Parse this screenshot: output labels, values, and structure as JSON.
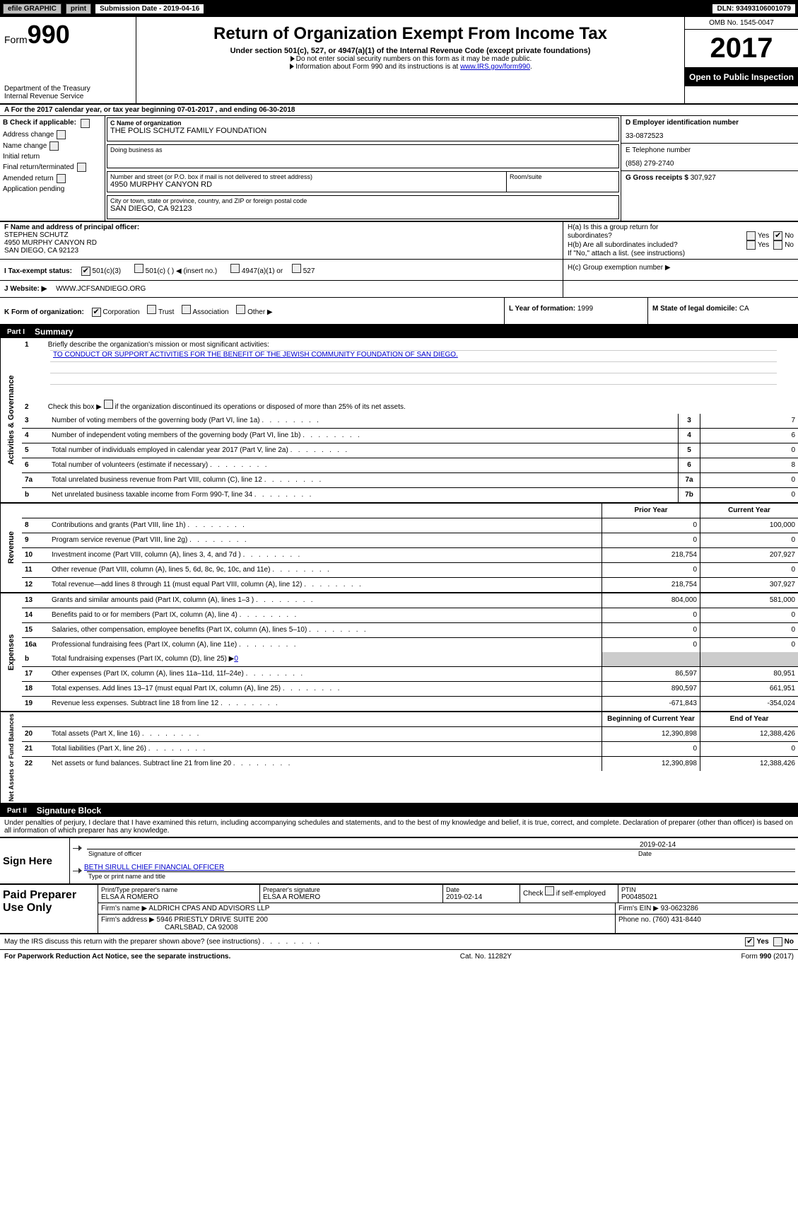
{
  "topbar": {
    "efile": "efile GRAPHIC",
    "print": "print",
    "submission": "Submission Date - 2019-04-16",
    "dln": "DLN: 93493106001079"
  },
  "header": {
    "form_word": "Form",
    "form_number": "990",
    "dept": "Department of the Treasury\nInternal Revenue Service",
    "title": "Return of Organization Exempt From Income Tax",
    "subtitle": "Under section 501(c), 527, or 4947(a)(1) of the Internal Revenue Code (except private foundations)",
    "note1": "Do not enter social security numbers on this form as it may be made public.",
    "note2_a": "Information about Form 990 and its instructions is at ",
    "note2_link": "www.IRS.gov/form990",
    "note2_b": ".",
    "omb": "OMB No. 1545-0047",
    "year": "2017",
    "open": "Open to Public Inspection"
  },
  "rowA": "A    For the 2017 calendar year, or tax year beginning 07-01-2017    , and ending 06-30-2018",
  "colB": {
    "title": "B  Check if applicable:",
    "items": [
      "Address change",
      "Name change",
      "Initial return",
      "Final return/terminated",
      "Amended return",
      "Application pending"
    ]
  },
  "boxC": {
    "lbl": "C Name of organization",
    "val": "THE POLIS SCHUTZ FAMILY FOUNDATION",
    "dba_lbl": "Doing business as"
  },
  "addr": {
    "lbl": "Number and street (or P.O. box if mail is not delivered to street address)",
    "val": "4950 MURPHY CANYON RD",
    "room_lbl": "Room/suite",
    "city_lbl": "City or town, state or province, country, and ZIP or foreign postal code",
    "city_val": "SAN DIEGO, CA  92123"
  },
  "colD": {
    "ein_lbl": "D Employer identification number",
    "ein": "33-0872523",
    "tel_lbl": "E Telephone number",
    "tel": "(858) 279-2740",
    "gross_lbl": "G Gross receipts $",
    "gross": "307,927"
  },
  "principal": {
    "lbl": "F Name and address of principal officer:",
    "name": "STEPHEN SCHUTZ",
    "addr1": "4950 MURPHY CANYON RD",
    "addr2": "SAN DIEGO, CA  92123"
  },
  "h": {
    "ha": "H(a)   Is this a group return for",
    "ha2": "subordinates?",
    "hb": "H(b)   Are all subordinates included?",
    "hb_note": "If \"No,\" attach a list. (see instructions)",
    "hc": "H(c)   Group exemption number ▶",
    "yes": "Yes",
    "no": "No"
  },
  "tax_status": {
    "lbl": "I    Tax-exempt status:",
    "o1": "501(c)(3)",
    "o2": "501(c) (   ) ◀ (insert no.)",
    "o3": "4947(a)(1) or",
    "o4": "527"
  },
  "website": {
    "lbl": "J    Website: ▶",
    "val": "WWW.JCFSANDIEGO.ORG"
  },
  "korg": {
    "lbl": "K Form of organization:",
    "o1": "Corporation",
    "o2": "Trust",
    "o3": "Association",
    "o4": "Other ▶",
    "yof_lbl": "L Year of formation:",
    "yof": "1999",
    "state_lbl": "M State of legal domicile:",
    "state": "CA"
  },
  "part1": {
    "label": "Part I",
    "title": "Summary"
  },
  "governance": {
    "vlabel": "Activities & Governance",
    "r1": "Briefly describe the organization's mission or most significant activities:",
    "mission": "TO CONDUCT OR SUPPORT ACTIVITIES FOR THE BENEFIT OF THE JEWISH COMMUNITY FOUNDATION OF SAN DIEGO.",
    "r2": "Check this box ▶         if the organization discontinued its operations or disposed of more than 25% of its net assets.",
    "rows": [
      {
        "n": "3",
        "d": "Number of voting members of the governing body (Part VI, line 1a)",
        "k": "3",
        "v": "7"
      },
      {
        "n": "4",
        "d": "Number of independent voting members of the governing body (Part VI, line 1b)",
        "k": "4",
        "v": "6"
      },
      {
        "n": "5",
        "d": "Total number of individuals employed in calendar year 2017 (Part V, line 2a)",
        "k": "5",
        "v": "0"
      },
      {
        "n": "6",
        "d": "Total number of volunteers (estimate if necessary)",
        "k": "6",
        "v": "8"
      },
      {
        "n": "7a",
        "d": "Total unrelated business revenue from Part VIII, column (C), line 12",
        "k": "7a",
        "v": "0"
      },
      {
        "n": "b",
        "d": "Net unrelated business taxable income from Form 990-T, line 34",
        "k": "7b",
        "v": "0"
      }
    ]
  },
  "revenue": {
    "vlabel": "Revenue",
    "head_prior": "Prior Year",
    "head_curr": "Current Year",
    "rows": [
      {
        "n": "8",
        "d": "Contributions and grants (Part VIII, line 1h)",
        "p": "0",
        "c": "100,000"
      },
      {
        "n": "9",
        "d": "Program service revenue (Part VIII, line 2g)",
        "p": "0",
        "c": "0"
      },
      {
        "n": "10",
        "d": "Investment income (Part VIII, column (A), lines 3, 4, and 7d )",
        "p": "218,754",
        "c": "207,927"
      },
      {
        "n": "11",
        "d": "Other revenue (Part VIII, column (A), lines 5, 6d, 8c, 9c, 10c, and 11e)",
        "p": "0",
        "c": "0"
      },
      {
        "n": "12",
        "d": "Total revenue—add lines 8 through 11 (must equal Part VIII, column (A), line 12)",
        "p": "218,754",
        "c": "307,927"
      }
    ]
  },
  "expenses": {
    "vlabel": "Expenses",
    "rows": [
      {
        "n": "13",
        "d": "Grants and similar amounts paid (Part IX, column (A), lines 1–3 )",
        "p": "804,000",
        "c": "581,000"
      },
      {
        "n": "14",
        "d": "Benefits paid to or for members (Part IX, column (A), line 4)",
        "p": "0",
        "c": "0"
      },
      {
        "n": "15",
        "d": "Salaries, other compensation, employee benefits (Part IX, column (A), lines 5–10)",
        "p": "0",
        "c": "0"
      },
      {
        "n": "16a",
        "d": "Professional fundraising fees (Part IX, column (A), line 11e)",
        "p": "0",
        "c": "0"
      }
    ],
    "r16b_n": "b",
    "r16b_d": "Total fundraising expenses (Part IX, column (D), line 25) ▶",
    "r16b_v": "0",
    "rows2": [
      {
        "n": "17",
        "d": "Other expenses (Part IX, column (A), lines 11a–11d, 11f–24e)",
        "p": "86,597",
        "c": "80,951"
      },
      {
        "n": "18",
        "d": "Total expenses. Add lines 13–17 (must equal Part IX, column (A), line 25)",
        "p": "890,597",
        "c": "661,951"
      },
      {
        "n": "19",
        "d": "Revenue less expenses. Subtract line 18 from line 12",
        "p": "-671,843",
        "c": "-354,024"
      }
    ]
  },
  "netassets": {
    "vlabel": "Net Assets or Fund Balances",
    "head_prior": "Beginning of Current Year",
    "head_curr": "End of Year",
    "rows": [
      {
        "n": "20",
        "d": "Total assets (Part X, line 16)",
        "p": "12,390,898",
        "c": "12,388,426"
      },
      {
        "n": "21",
        "d": "Total liabilities (Part X, line 26)",
        "p": "0",
        "c": "0"
      },
      {
        "n": "22",
        "d": "Net assets or fund balances. Subtract line 21 from line 20",
        "p": "12,390,898",
        "c": "12,388,426"
      }
    ]
  },
  "part2": {
    "label": "Part II",
    "title": "Signature Block"
  },
  "sig_intro": "Under penalties of perjury, I declare that I have examined this return, including accompanying schedules and statements, and to the best of my knowledge and belief, it is true, correct, and complete. Declaration of preparer (other than officer) is based on all information of which preparer has any knowledge.",
  "sign": {
    "lbl": "Sign Here",
    "sig_lbl": "Signature of officer",
    "date": "2019-02-14",
    "date_lbl": "Date",
    "name": "BETH SIRULL  CHIEF FINANCIAL OFFICER",
    "name_lbl": "Type or print name and title"
  },
  "preparer": {
    "lbl": "Paid Preparer Use Only",
    "pt_name_lbl": "Print/Type preparer's name",
    "pt_name": "ELSA A ROMERO",
    "pt_sig_lbl": "Preparer's signature",
    "pt_sig": "ELSA A ROMERO",
    "pt_date_lbl": "Date",
    "pt_date": "2019-02-14",
    "self_lbl": "Check         if self-employed",
    "ptin_lbl": "PTIN",
    "ptin": "P00485021",
    "firm_name_lbl": "Firm's name    ▶",
    "firm_name": "ALDRICH CPAS AND ADVISORS LLP",
    "firm_ein_lbl": "Firm's EIN ▶",
    "firm_ein": "93-0623286",
    "firm_addr_lbl": "Firm's address ▶",
    "firm_addr": "5946 PRIESTLY DRIVE SUITE 200",
    "firm_city": "CARLSBAD, CA  92008",
    "phone_lbl": "Phone no.",
    "phone": "(760) 431-8440"
  },
  "discuss": {
    "q": "May the IRS discuss this return with the preparer shown above? (see instructions)",
    "yes": "Yes",
    "no": "No"
  },
  "footer": {
    "left": "For Paperwork Reduction Act Notice, see the separate instructions.",
    "mid": "Cat. No. 11282Y",
    "right_a": "Form ",
    "right_b": "990",
    "right_c": " (2017)"
  }
}
